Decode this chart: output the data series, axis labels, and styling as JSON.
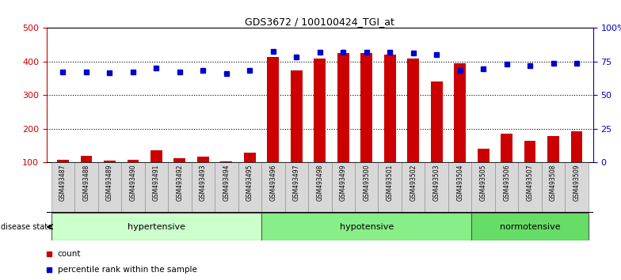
{
  "title": "GDS3672 / 100100424_TGI_at",
  "samples": [
    "GSM493487",
    "GSM493488",
    "GSM493489",
    "GSM493490",
    "GSM493491",
    "GSM493492",
    "GSM493493",
    "GSM493494",
    "GSM493495",
    "GSM493496",
    "GSM493497",
    "GSM493498",
    "GSM493499",
    "GSM493500",
    "GSM493501",
    "GSM493502",
    "GSM493503",
    "GSM493504",
    "GSM493505",
    "GSM493506",
    "GSM493507",
    "GSM493508",
    "GSM493509"
  ],
  "counts": [
    107,
    120,
    105,
    107,
    135,
    113,
    117,
    103,
    130,
    415,
    375,
    410,
    425,
    425,
    420,
    410,
    340,
    395,
    140,
    185,
    165,
    178,
    192
  ],
  "percentile_ranks": [
    369,
    369,
    366,
    369,
    380,
    369,
    374,
    365,
    374,
    430,
    415,
    427,
    428,
    428,
    427,
    425,
    420,
    375,
    378,
    392,
    388,
    395,
    396
  ],
  "groups": [
    {
      "label": "hypertensive",
      "start": 0,
      "end": 9,
      "color": "#ccffcc"
    },
    {
      "label": "hypotensive",
      "start": 9,
      "end": 18,
      "color": "#88ee88"
    },
    {
      "label": "normotensive",
      "start": 18,
      "end": 23,
      "color": "#66dd66"
    }
  ],
  "ylim_left": [
    100,
    500
  ],
  "ylim_right": [
    0,
    100
  ],
  "yticks_left": [
    100,
    200,
    300,
    400,
    500
  ],
  "yticks_right": [
    0,
    25,
    50,
    75,
    100
  ],
  "ytick_labels_right": [
    "0",
    "25",
    "50",
    "75",
    "100%"
  ],
  "bar_color": "#cc0000",
  "dot_color": "#0000cc",
  "background_color": "#ffffff",
  "grid_color": "#000000",
  "disease_state_label": "disease state"
}
